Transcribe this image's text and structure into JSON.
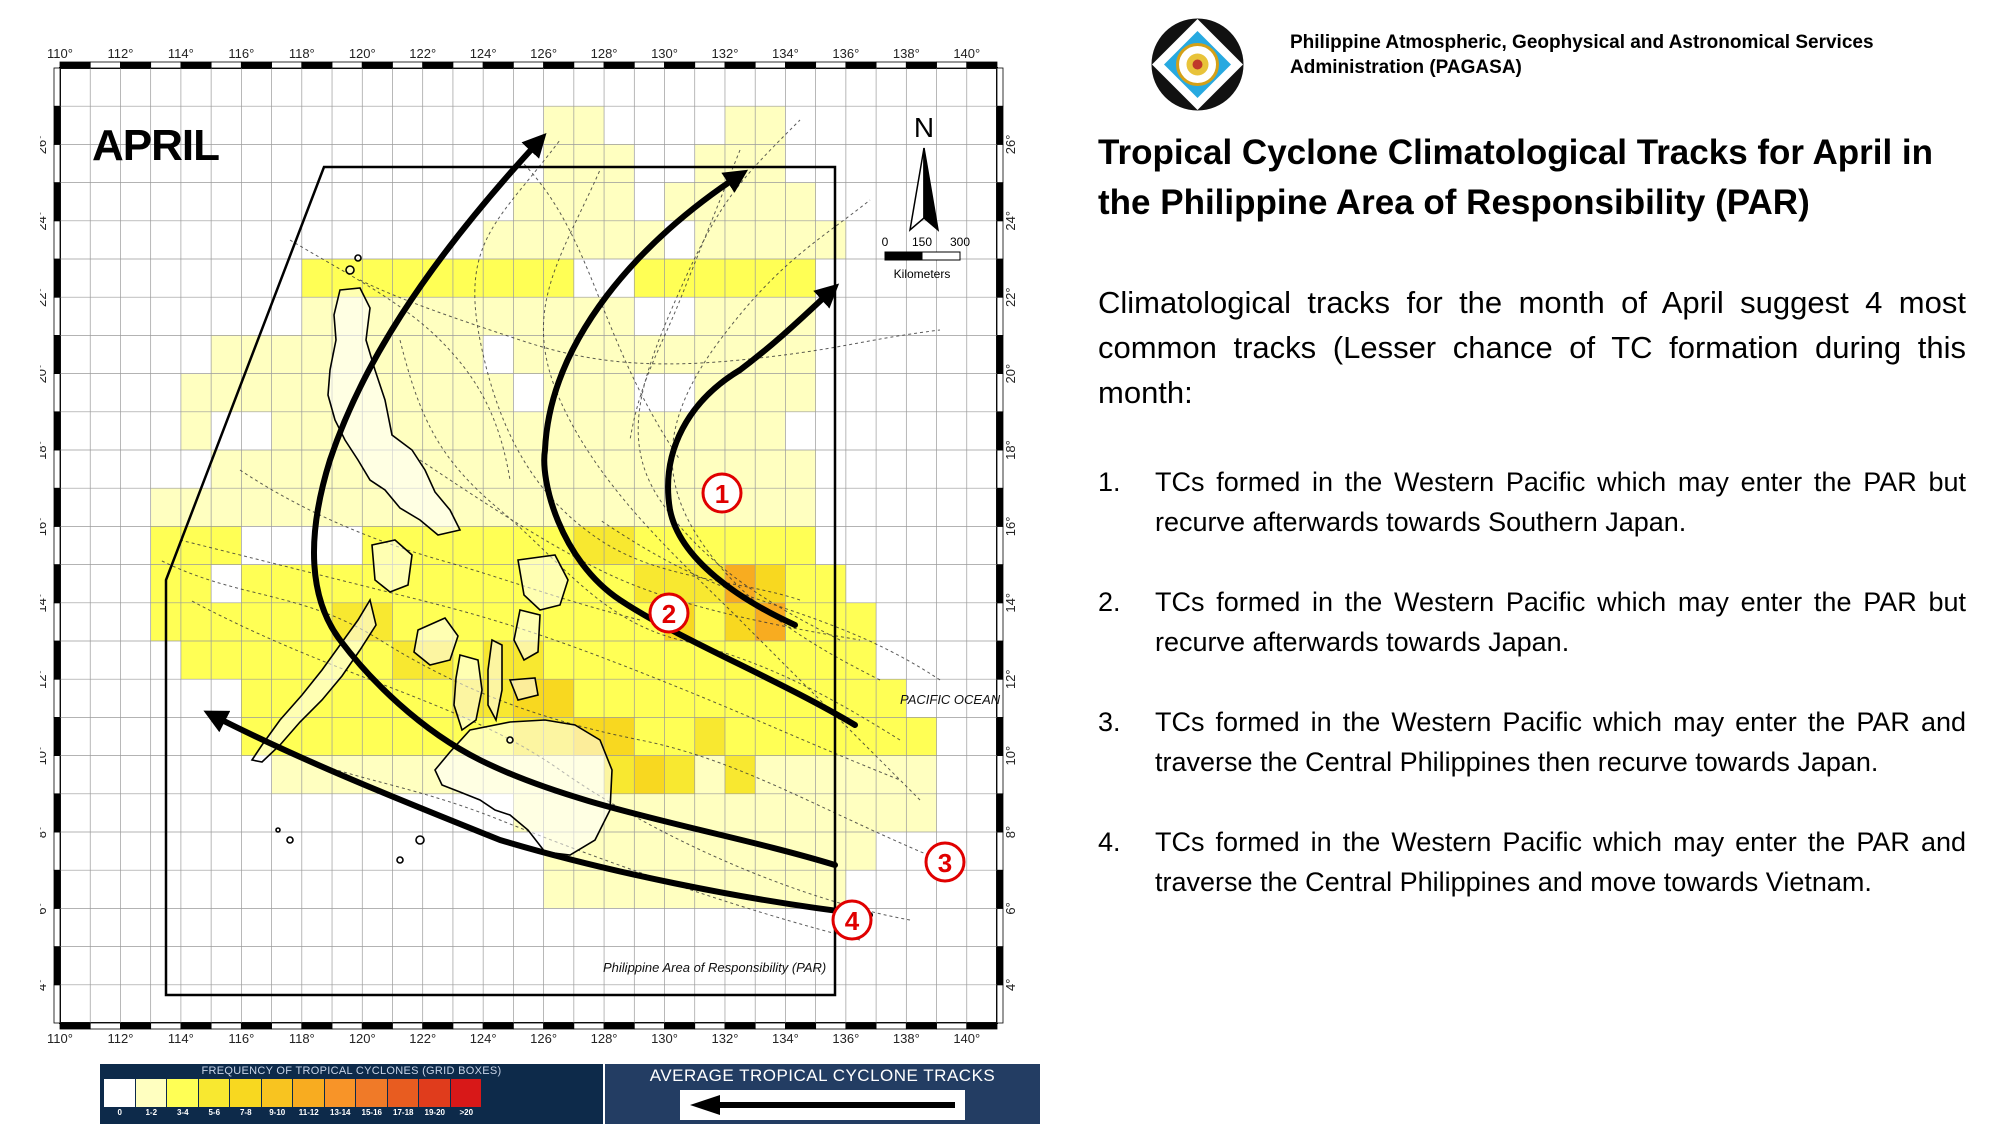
{
  "map": {
    "month": "APRIL",
    "longitude_ticks": [
      "110°",
      "112°",
      "114°",
      "116°",
      "118°",
      "120°",
      "122°",
      "124°",
      "126°",
      "128°",
      "130°",
      "132°",
      "134°",
      "136°",
      "138°",
      "140°"
    ],
    "latitude_ticks": [
      "4°",
      "6°",
      "8°",
      "10°",
      "12°",
      "14°",
      "16°",
      "18°",
      "20°",
      "22°",
      "24°",
      "26°"
    ],
    "north_label": "N",
    "scale_labels": [
      "0",
      "150",
      "300"
    ],
    "scale_unit": "Kilometers",
    "ocean_label": "PACIFIC OCEAN",
    "par_label": "Philippine Area of Responsibility (PAR)",
    "track_markers": [
      "1",
      "2",
      "3",
      "4"
    ]
  },
  "legend": {
    "frequency_title": "FREQUENCY OF TROPICAL CYCLONES (GRID BOXES)",
    "frequency_ranges": [
      "0",
      "1-2",
      "3-4",
      "5-6",
      "7-8",
      "9-10",
      "11-12",
      "13-14",
      "15-16",
      "17-18",
      "19-20",
      ">20"
    ],
    "frequency_colors": [
      "#ffffff",
      "#ffffc0",
      "#ffff55",
      "#f8e830",
      "#f8d820",
      "#f8c420",
      "#f8ac20",
      "#f89428",
      "#f07a28",
      "#e85c20",
      "#e03c1c",
      "#d81818"
    ],
    "tracks_title": "AVERAGE TROPICAL CYCLONE TRACKS"
  },
  "header": {
    "agency": "Philippine Atmospheric, Geophysical and Astronomical Services Administration (PAGASA)"
  },
  "title": "Tropical Cyclone Climatological Tracks for April in the Philippine Area of Responsibility (PAR)",
  "intro": "Climatological tracks for the month of April suggest 4 most common tracks (Lesser chance of TC formation during this month:",
  "tracks": [
    {
      "num": "1.",
      "text": "TCs formed in the Western Pacific which may enter the PAR but recurve afterwards towards Southern Japan."
    },
    {
      "num": "2.",
      "text": "TCs formed in the Western Pacific which may enter the PAR but recurve afterwards towards Japan."
    },
    {
      "num": "3.",
      "text": "TCs formed in the Western Pacific which may enter the PAR and traverse the Central Philippines then recurve towards Japan."
    },
    {
      "num": "4.",
      "text": "TCs formed in the Western Pacific which may enter the PAR and traverse the Central Philippines and move towards Vietnam."
    }
  ]
}
